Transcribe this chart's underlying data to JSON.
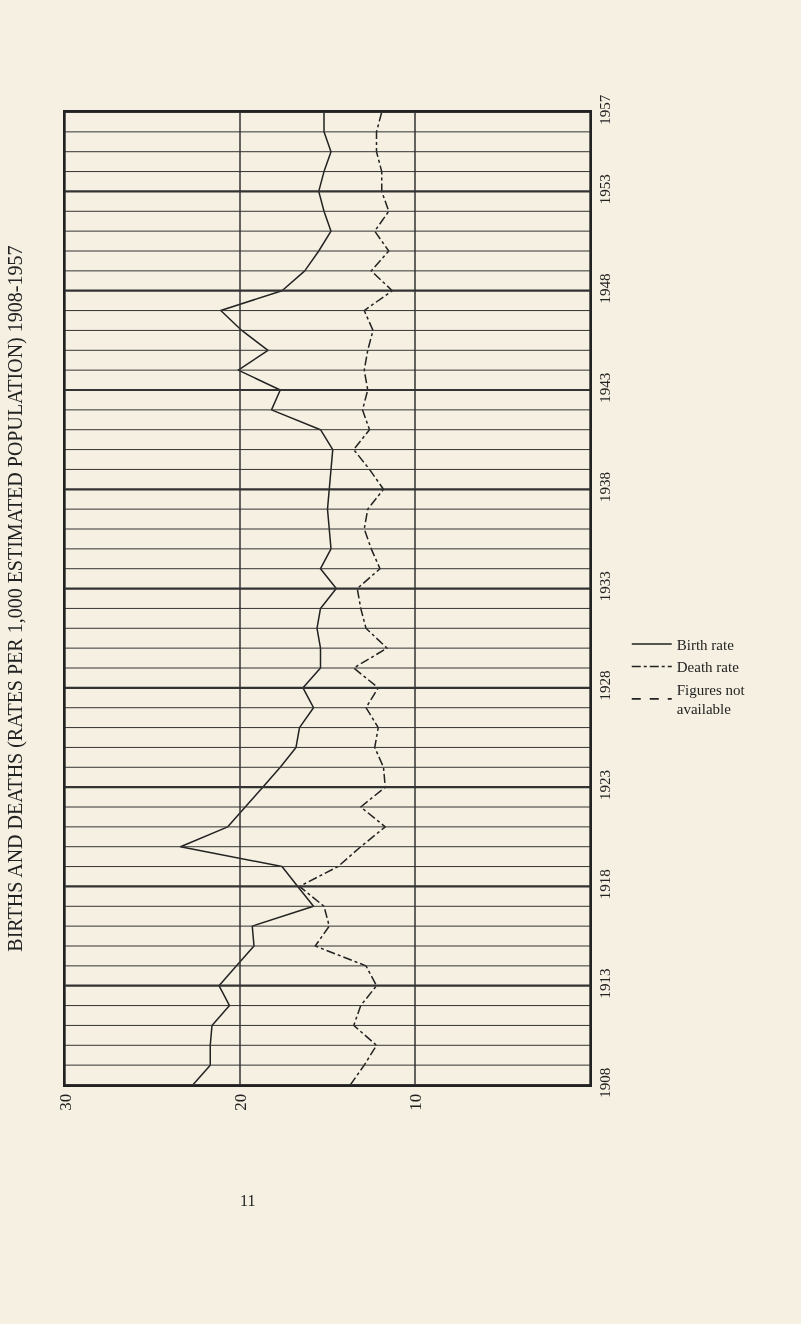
{
  "chart_data": {
    "type": "line",
    "title": "BIRTHS AND DEATHS (RATES PER 1,000 ESTIMATED POPULATION) 1908-1957",
    "orientation": "horizontal",
    "x": [
      1908,
      1909,
      1910,
      1911,
      1912,
      1913,
      1914,
      1915,
      1916,
      1917,
      1918,
      1919,
      1920,
      1921,
      1922,
      1923,
      1924,
      1925,
      1926,
      1927,
      1928,
      1929,
      1930,
      1931,
      1932,
      1933,
      1934,
      1935,
      1936,
      1937,
      1938,
      1939,
      1940,
      1941,
      1942,
      1943,
      1944,
      1945,
      1946,
      1947,
      1948,
      1949,
      1950,
      1951,
      1952,
      1953,
      1954,
      1955,
      1956,
      1957
    ],
    "series": [
      {
        "name": "Birth rate",
        "color": "#222222",
        "line_style": "solid",
        "values": [
          22.7,
          21.7,
          21.7,
          21.6,
          20.6,
          21.2,
          20.2,
          19.2,
          19.3,
          15.8,
          16.7,
          17.6,
          23.4,
          20.7,
          19.7,
          18.7,
          17.7,
          16.8,
          16.6,
          15.8,
          16.4,
          15.4,
          15.4,
          15.6,
          15.4,
          14.5,
          15.4,
          14.8,
          14.9,
          15.0,
          14.9,
          14.8,
          14.7,
          15.4,
          18.2,
          17.7,
          20.1,
          18.4,
          19.9,
          21.1,
          17.6,
          16.3,
          15.5,
          14.8,
          15.2,
          15.5,
          15.2,
          14.8,
          15.2,
          15.2
        ]
      },
      {
        "name": "Death rate",
        "color": "#222222",
        "line_style": "dashdot",
        "values": [
          13.7,
          12.9,
          12.2,
          13.5,
          13.1,
          12.2,
          12.8,
          15.7,
          14.9,
          15.2,
          16.6,
          14.4,
          13.1,
          11.7,
          13.1,
          11.7,
          11.8,
          12.3,
          12.1,
          12.8,
          12.1,
          13.5,
          11.6,
          12.8,
          13.1,
          13.3,
          12.0,
          12.5,
          12.9,
          12.7,
          11.8,
          12.6,
          13.5,
          12.6,
          13.0,
          12.7,
          12.9,
          12.7,
          12.4,
          12.9,
          11.3,
          12.5,
          11.5,
          12.3,
          11.5,
          11.9,
          11.9,
          12.2,
          12.2,
          11.9
        ]
      }
    ],
    "xlim": [
      30,
      0
    ],
    "xticks": [
      30,
      20,
      10,
      {
        "value": 0,
        "label": null
      }
    ],
    "ylim": [
      1908,
      1957
    ],
    "yticks": [
      1908,
      {
        "value": 1909,
        "label": null
      },
      {
        "value": 1910,
        "label": null
      },
      {
        "value": 1911,
        "label": null
      },
      {
        "value": 1912,
        "label": null
      },
      1913,
      {
        "value": 1914,
        "label": null
      },
      {
        "value": 1915,
        "label": null
      },
      {
        "value": 1916,
        "label": null
      },
      {
        "value": 1917,
        "label": null
      },
      1918,
      {
        "value": 1919,
        "label": null
      },
      {
        "value": 1920,
        "label": null
      },
      {
        "value": 1921,
        "label": null
      },
      {
        "value": 1922,
        "label": null
      },
      1923,
      {
        "value": 1924,
        "label": null
      },
      {
        "value": 1925,
        "label": null
      },
      {
        "value": 1926,
        "label": null
      },
      {
        "value": 1927,
        "label": null
      },
      1928,
      {
        "value": 1929,
        "label": null
      },
      {
        "value": 1930,
        "label": null
      },
      {
        "value": 1931,
        "label": null
      },
      {
        "value": 1932,
        "label": null
      },
      1933,
      {
        "value": 1934,
        "label": null
      },
      {
        "value": 1935,
        "label": null
      },
      {
        "value": 1936,
        "label": null
      },
      {
        "value": 1937,
        "label": null
      },
      1938,
      {
        "value": 1939,
        "label": null
      },
      {
        "value": 1940,
        "label": null
      },
      {
        "value": 1941,
        "label": null
      },
      {
        "value": 1942,
        "label": null
      },
      1943,
      {
        "value": 1944,
        "label": null
      },
      {
        "value": 1945,
        "label": null
      },
      {
        "value": 1946,
        "label": null
      },
      {
        "value": 1947,
        "label": null
      },
      1948,
      {
        "value": 1949,
        "label": null
      },
      {
        "value": 1950,
        "label": null
      },
      {
        "value": 1951,
        "label": null
      },
      {
        "value": 1952,
        "label": null
      },
      1953,
      {
        "value": 1954,
        "label": null
      },
      {
        "value": 1955,
        "label": null
      },
      {
        "value": 1956,
        "label": null
      },
      1957
    ],
    "grid": true,
    "legend": "right",
    "annotations": [
      "Figures not available",
      "11"
    ]
  }
}
